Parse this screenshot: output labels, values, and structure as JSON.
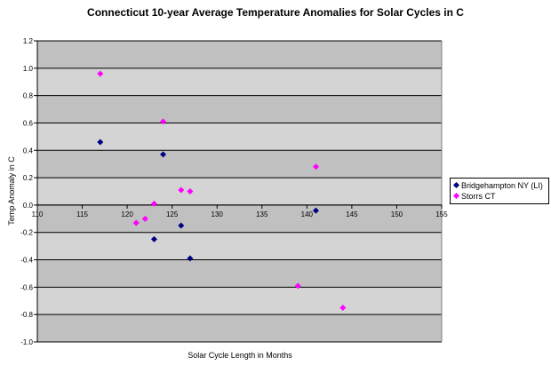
{
  "chart_data": {
    "type": "scatter",
    "title": "Connecticut 10-year Average Temperature Anomalies for Solar Cycles in C",
    "xlabel": "Solar Cycle Length in Months",
    "ylabel": "Temp Anomaly in C",
    "xlim": [
      110,
      155
    ],
    "ylim": [
      -1.0,
      1.2
    ],
    "xticks": [
      "110",
      "115",
      "120",
      "125",
      "130",
      "135",
      "140",
      "145",
      "150",
      "155"
    ],
    "yticks": [
      "1.2",
      "1.0",
      "0.8",
      "0.6",
      "0.4",
      "0.2",
      "0.0",
      "-0.2",
      "-0.4",
      "-0.6",
      "-0.8",
      "-1.0"
    ],
    "grid": "horizontal",
    "legend_position": "right",
    "series": [
      {
        "name": "Bridgehampton NY (LI)",
        "color": "#000080",
        "marker": "diamond",
        "points": [
          {
            "x": 117,
            "y": 0.46
          },
          {
            "x": 124,
            "y": 0.37
          },
          {
            "x": 123,
            "y": -0.25
          },
          {
            "x": 126,
            "y": -0.15
          },
          {
            "x": 127,
            "y": -0.39
          },
          {
            "x": 141,
            "y": -0.04
          }
        ]
      },
      {
        "name": "Storrs CT",
        "color": "#ff00ff",
        "marker": "diamond",
        "points": [
          {
            "x": 117,
            "y": 0.96
          },
          {
            "x": 124,
            "y": 0.61
          },
          {
            "x": 121,
            "y": -0.13
          },
          {
            "x": 122,
            "y": -0.1
          },
          {
            "x": 123,
            "y": 0.01
          },
          {
            "x": 126,
            "y": 0.11
          },
          {
            "x": 127,
            "y": 0.1
          },
          {
            "x": 141,
            "y": 0.28
          },
          {
            "x": 139,
            "y": -0.59
          },
          {
            "x": 144,
            "y": -0.75
          }
        ]
      }
    ]
  }
}
